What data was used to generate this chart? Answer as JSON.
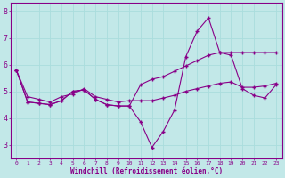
{
  "xlabel": "Windchill (Refroidissement éolien,°C)",
  "bg_color": "#c2e8e8",
  "line_color": "#880088",
  "grid_color": "#aadddd",
  "x_data": [
    0,
    1,
    2,
    3,
    4,
    5,
    6,
    7,
    8,
    9,
    10,
    11,
    12,
    13,
    14,
    15,
    16,
    17,
    18,
    19,
    20,
    21,
    22,
    23
  ],
  "line1": [
    5.8,
    4.6,
    4.55,
    4.5,
    4.65,
    5.0,
    5.05,
    4.7,
    4.5,
    4.45,
    4.45,
    3.85,
    2.9,
    3.5,
    4.3,
    6.3,
    7.25,
    7.75,
    6.45,
    6.35,
    5.1,
    4.85,
    4.75,
    5.25
  ],
  "line2": [
    5.8,
    4.8,
    4.7,
    4.6,
    4.8,
    4.9,
    5.1,
    4.8,
    4.7,
    4.6,
    4.65,
    4.65,
    4.65,
    4.75,
    4.85,
    5.0,
    5.1,
    5.2,
    5.3,
    5.35,
    5.15,
    5.15,
    5.2,
    5.3
  ],
  "line3": [
    5.8,
    4.6,
    4.55,
    4.5,
    4.65,
    5.0,
    5.05,
    4.7,
    4.5,
    4.45,
    4.45,
    5.25,
    5.45,
    5.55,
    5.75,
    5.95,
    6.15,
    6.35,
    6.45,
    6.45,
    6.45,
    6.45,
    6.45,
    6.45
  ],
  "ylim": [
    2.5,
    8.3
  ],
  "yticks": [
    3,
    4,
    5,
    6,
    7,
    8
  ],
  "xticks": [
    0,
    1,
    2,
    3,
    4,
    5,
    6,
    7,
    8,
    9,
    10,
    11,
    12,
    13,
    14,
    15,
    16,
    17,
    18,
    19,
    20,
    21,
    22,
    23
  ]
}
